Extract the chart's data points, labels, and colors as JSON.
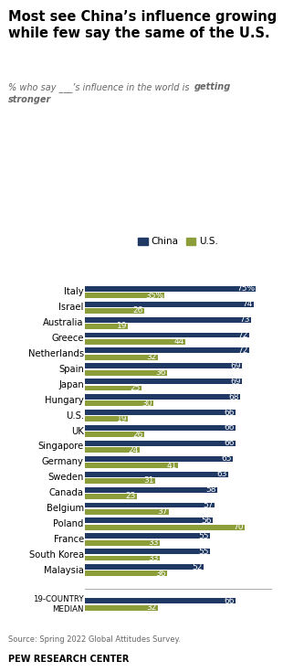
{
  "title": "Most see China’s influence growing\nwhile few say the same of the U.S.",
  "subtitle_plain": "% who say ___’s influence in the world is ",
  "subtitle_italic": "getting\nstronger",
  "countries": [
    "Italy",
    "Israel",
    "Australia",
    "Greece",
    "Netherlands",
    "Spain",
    "Japan",
    "Hungary",
    "U.S.",
    "UK",
    "Singapore",
    "Germany",
    "Sweden",
    "Canada",
    "Belgium",
    "Poland",
    "France",
    "South Korea",
    "Malaysia"
  ],
  "china_values": [
    75,
    74,
    73,
    72,
    72,
    69,
    69,
    68,
    66,
    66,
    66,
    65,
    63,
    58,
    57,
    56,
    55,
    55,
    52
  ],
  "us_values": [
    35,
    26,
    19,
    44,
    32,
    36,
    25,
    30,
    19,
    26,
    24,
    41,
    31,
    23,
    37,
    70,
    33,
    33,
    36
  ],
  "median_china": 66,
  "median_us": 32,
  "china_color": "#1F3864",
  "us_color": "#8B9E3A",
  "source": "Source: Spring 2022 Global Attitudes Survey.",
  "footer": "PEW RESEARCH CENTER",
  "legend_china": "China",
  "legend_us": "U.S.",
  "xlim": [
    0,
    82
  ]
}
